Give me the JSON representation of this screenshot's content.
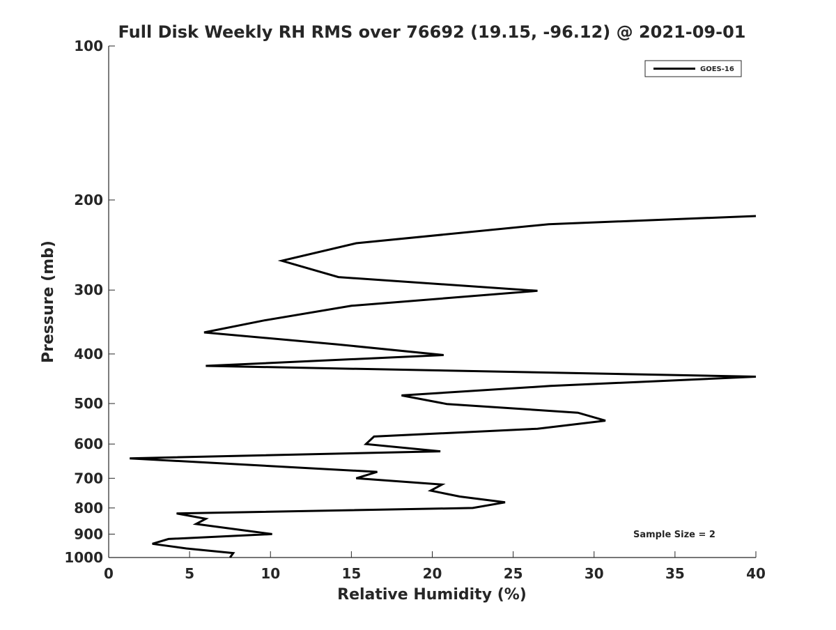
{
  "chart_data": {
    "type": "line",
    "title": "Full Disk Weekly RH RMS over 76692 (19.15, -96.12) @ 2021-09-01",
    "xlabel": "Relative Humidity (%)",
    "ylabel": "Pressure (mb)",
    "xlim": [
      0,
      40
    ],
    "ylim": [
      100,
      1000
    ],
    "y_scale": "log",
    "y_reversed": true,
    "x_ticks": [
      0,
      5,
      10,
      15,
      20,
      25,
      30,
      35,
      40
    ],
    "y_ticks": [
      100,
      200,
      300,
      400,
      500,
      600,
      700,
      800,
      900,
      1000
    ],
    "grid": false,
    "legend_position": "top-right",
    "annotation": "Sample Size = 2",
    "series": [
      {
        "name": "GOES-16",
        "color": "#000000",
        "points": [
          {
            "x": 40.0,
            "y": 215
          },
          {
            "x": 27.2,
            "y": 223
          },
          {
            "x": 15.3,
            "y": 243
          },
          {
            "x": 10.7,
            "y": 263
          },
          {
            "x": 14.2,
            "y": 283
          },
          {
            "x": 26.5,
            "y": 301
          },
          {
            "x": 15.0,
            "y": 322
          },
          {
            "x": 9.6,
            "y": 344
          },
          {
            "x": 5.9,
            "y": 363
          },
          {
            "x": 14.1,
            "y": 383
          },
          {
            "x": 20.7,
            "y": 402
          },
          {
            "x": 6.0,
            "y": 422
          },
          {
            "x": 40.0,
            "y": 443
          },
          {
            "x": 27.3,
            "y": 462
          },
          {
            "x": 18.1,
            "y": 482
          },
          {
            "x": 20.9,
            "y": 501
          },
          {
            "x": 29.0,
            "y": 521
          },
          {
            "x": 30.7,
            "y": 540
          },
          {
            "x": 26.5,
            "y": 560
          },
          {
            "x": 16.4,
            "y": 580
          },
          {
            "x": 15.9,
            "y": 600
          },
          {
            "x": 20.5,
            "y": 620
          },
          {
            "x": 1.3,
            "y": 640
          },
          {
            "x": 16.6,
            "y": 680
          },
          {
            "x": 15.3,
            "y": 700
          },
          {
            "x": 20.6,
            "y": 720
          },
          {
            "x": 19.9,
            "y": 740
          },
          {
            "x": 21.7,
            "y": 760
          },
          {
            "x": 24.5,
            "y": 780
          },
          {
            "x": 22.5,
            "y": 800
          },
          {
            "x": 4.2,
            "y": 820
          },
          {
            "x": 6.0,
            "y": 840
          },
          {
            "x": 5.4,
            "y": 860
          },
          {
            "x": 10.1,
            "y": 900
          },
          {
            "x": 3.7,
            "y": 920
          },
          {
            "x": 2.7,
            "y": 940
          },
          {
            "x": 4.8,
            "y": 960
          },
          {
            "x": 7.7,
            "y": 980
          },
          {
            "x": 7.5,
            "y": 1000
          }
        ]
      }
    ]
  }
}
